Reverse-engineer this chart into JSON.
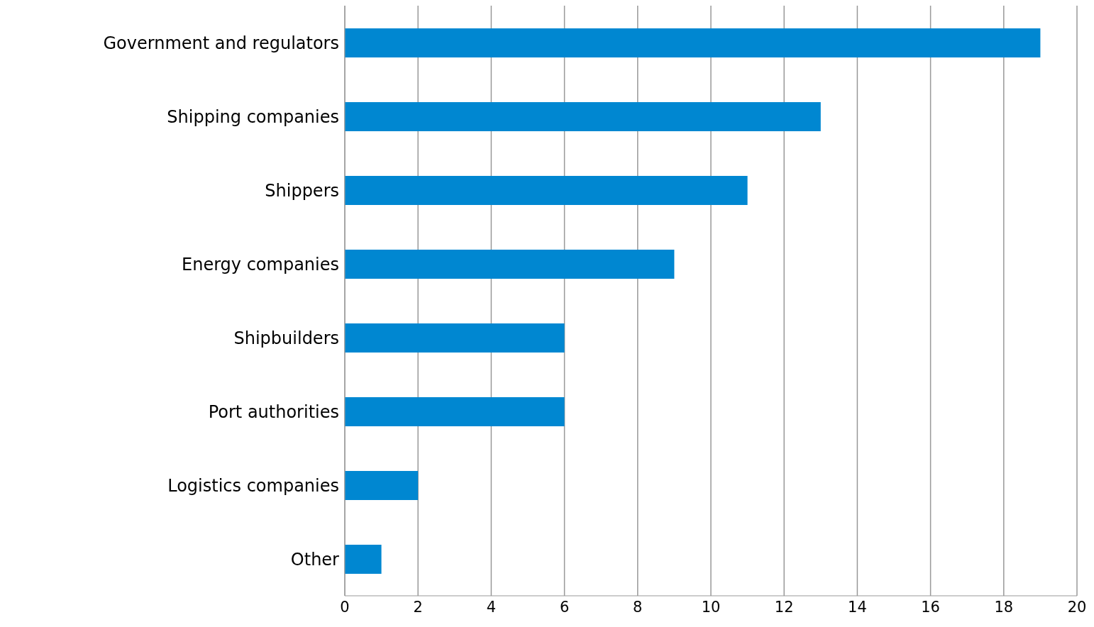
{
  "chart_data": {
    "type": "bar",
    "orientation": "horizontal",
    "categories": [
      "Government and regulators",
      "Shipping companies",
      "Shippers",
      "Energy companies",
      "Shipbuilders",
      "Port authorities",
      "Logistics companies",
      "Other"
    ],
    "values": [
      19,
      13,
      11,
      9,
      6,
      6,
      2,
      1
    ],
    "color": "#0087d1",
    "xlim": [
      0,
      20
    ],
    "xticks": [
      0,
      2,
      4,
      6,
      8,
      10,
      12,
      14,
      16,
      18,
      20
    ],
    "grid": "x"
  }
}
